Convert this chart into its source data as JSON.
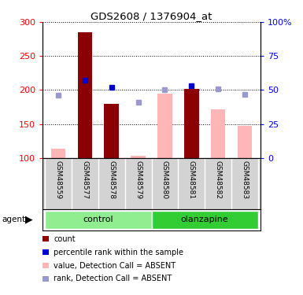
{
  "title": "GDS2608 / 1376904_at",
  "samples": [
    "GSM48559",
    "GSM48577",
    "GSM48578",
    "GSM48579",
    "GSM48580",
    "GSM48581",
    "GSM48582",
    "GSM48583"
  ],
  "bar_values": [
    113,
    285,
    180,
    103,
    195,
    202,
    172,
    147
  ],
  "bar_absent": [
    true,
    false,
    false,
    true,
    true,
    false,
    true,
    true
  ],
  "blue_dot_y": [
    null,
    57,
    52,
    null,
    null,
    53,
    null,
    null
  ],
  "lightblue_dot_y": [
    46,
    null,
    null,
    41,
    50,
    null,
    51,
    47
  ],
  "ylim_left": [
    100,
    300
  ],
  "yticks_left": [
    100,
    150,
    200,
    250,
    300
  ],
  "yticks_right": [
    0,
    25,
    50,
    75,
    100
  ],
  "ytick_labels_right": [
    "0",
    "25",
    "50",
    "75",
    "100%"
  ],
  "bar_color_present": "#8B0000",
  "bar_color_absent": "#FFB6B6",
  "blue_dot_color": "#0000CD",
  "lightblue_dot_color": "#9999CC",
  "xticklabel_area_color": "#D3D3D3",
  "groups_info": [
    {
      "label": "control",
      "start": 0,
      "end": 3,
      "color": "#90EE90"
    },
    {
      "label": "olanzapine",
      "start": 4,
      "end": 7,
      "color": "#32CD32"
    }
  ],
  "legend_colors": [
    "#8B0000",
    "#0000CD",
    "#FFB6B6",
    "#9999CC"
  ],
  "legend_labels": [
    "count",
    "percentile rank within the sample",
    "value, Detection Call = ABSENT",
    "rank, Detection Call = ABSENT"
  ]
}
